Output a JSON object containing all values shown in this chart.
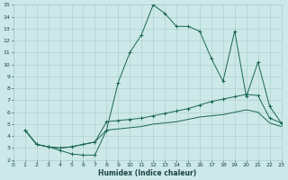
{
  "xlabel": "Humidex (Indice chaleur)",
  "xlim": [
    0,
    23
  ],
  "ylim": [
    2,
    15
  ],
  "xticks": [
    0,
    1,
    2,
    3,
    4,
    5,
    6,
    7,
    8,
    9,
    10,
    11,
    12,
    13,
    14,
    15,
    16,
    17,
    18,
    19,
    20,
    21,
    22,
    23
  ],
  "yticks": [
    2,
    3,
    4,
    5,
    6,
    7,
    8,
    9,
    10,
    11,
    12,
    13,
    14,
    15
  ],
  "bg_color": "#cce8e8",
  "grid_color": "#aacccc",
  "line_color": "#1a6655",
  "curve1_x": [
    1,
    2,
    3,
    4,
    5,
    6,
    7,
    8,
    9,
    10,
    11,
    12,
    13,
    14,
    15,
    16,
    17,
    18,
    19,
    20,
    21,
    22,
    23
  ],
  "curve1_y": [
    4.5,
    3.3,
    3.1,
    2.8,
    2.5,
    2.4,
    2.4,
    4.5,
    8.5,
    11.0,
    12.5,
    15.0,
    14.3,
    13.2,
    13.2,
    12.8,
    10.5,
    8.6,
    12.8,
    7.3,
    10.2,
    6.5,
    5.1
  ],
  "curve2_x": [
    1,
    2,
    3,
    4,
    5,
    6,
    7,
    8,
    9,
    10,
    11,
    12,
    13,
    14,
    15,
    16,
    17,
    18,
    19,
    20,
    21,
    22,
    23
  ],
  "curve2_y": [
    4.5,
    3.3,
    3.1,
    3.0,
    3.1,
    3.3,
    3.5,
    5.2,
    5.3,
    5.4,
    5.5,
    5.7,
    5.9,
    6.1,
    6.3,
    6.6,
    6.9,
    7.1,
    7.3,
    7.5,
    7.4,
    5.5,
    5.1
  ],
  "curve3_x": [
    1,
    2,
    3,
    4,
    5,
    6,
    7,
    8,
    9,
    10,
    11,
    12,
    13,
    14,
    15,
    16,
    17,
    18,
    19,
    20,
    21,
    22,
    23
  ],
  "curve3_y": [
    4.5,
    3.3,
    3.1,
    3.0,
    3.1,
    3.3,
    3.5,
    4.5,
    4.6,
    4.7,
    4.8,
    5.0,
    5.1,
    5.2,
    5.4,
    5.6,
    5.7,
    5.8,
    6.0,
    6.2,
    6.0,
    5.1,
    4.8
  ]
}
